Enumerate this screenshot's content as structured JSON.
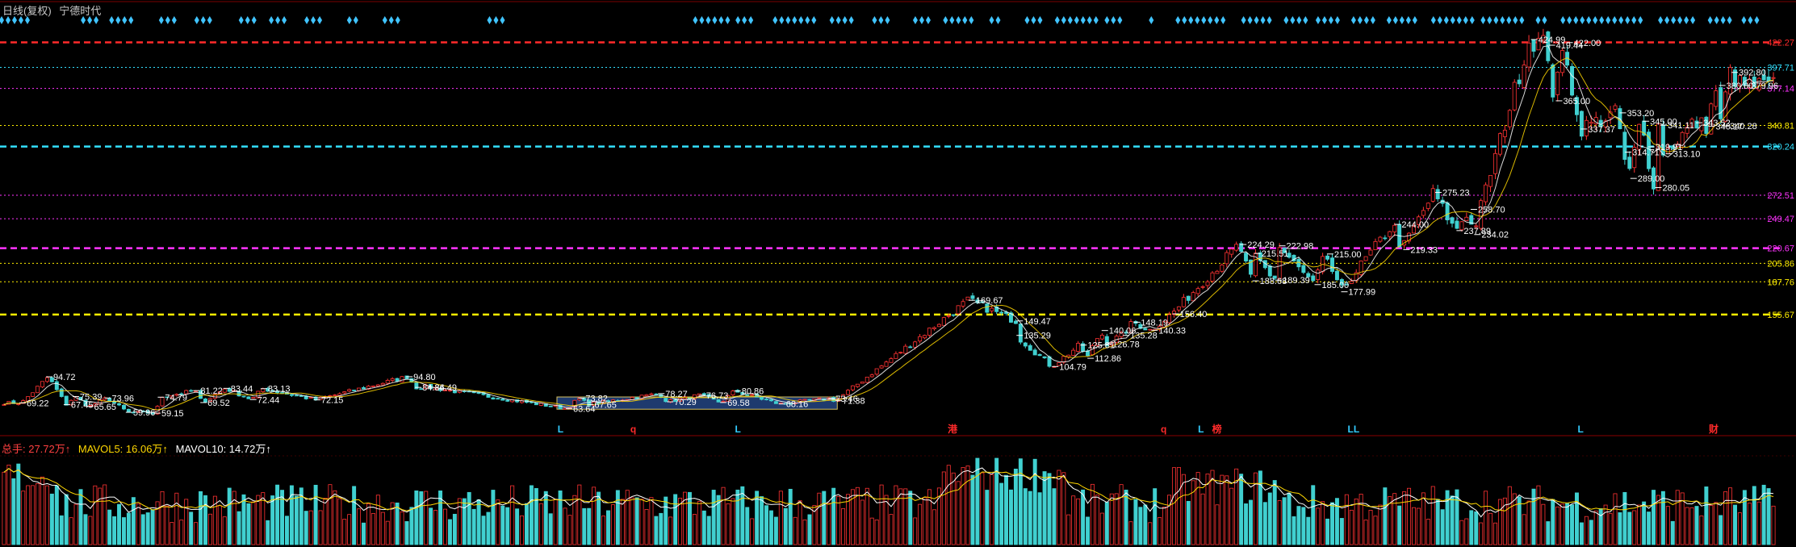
{
  "header": {
    "period_label": "日线(复权)",
    "stock_name": "宁德时代"
  },
  "volume_header": {
    "volume_text": "总手: 27.72万↑",
    "mavol5_text": "MAVOL5: 16.06万↑",
    "mavol10_text": "MAVOL10: 14.72万↑"
  },
  "colors": {
    "background": "#000000",
    "up": "#ff3333",
    "down": "#40d0d0",
    "ma_white": "#ffffff",
    "ma_yellow": "#ffd700",
    "level_red": "#ff2a2a",
    "level_cyan": "#33e0ff",
    "level_magenta": "#ff33ff",
    "level_yellow": "#ffee00",
    "signal_diamond": "#40c4ff",
    "marker_blue": "#33ccff",
    "marker_red": "#ff3333",
    "highlight_box": "#1e3a6e"
  },
  "chart_data": {
    "type": "candlestick",
    "title": "",
    "ylim": [
      45,
      440
    ],
    "price_levels": [
      {
        "value": 422.27,
        "label": "422.27",
        "color": "red",
        "style": "dashed-thick"
      },
      {
        "value": 397.71,
        "label": "397.71",
        "color": "cyan",
        "style": "dotted"
      },
      {
        "value": 377.14,
        "label": "377.14",
        "color": "magenta",
        "style": "dotted"
      },
      {
        "value": 340.81,
        "label": "340.81",
        "color": "yellow",
        "style": "dotted"
      },
      {
        "value": 320.24,
        "label": "320.24",
        "color": "cyan",
        "style": "dashed-thick"
      },
      {
        "value": 272.51,
        "label": "272.51",
        "color": "magenta",
        "style": "dotted"
      },
      {
        "value": 249.47,
        "label": "249.47",
        "color": "magenta",
        "style": "dotted"
      },
      {
        "value": 220.67,
        "label": "220.67",
        "color": "magenta",
        "style": "dashed-thick"
      },
      {
        "value": 205.86,
        "label": "205.86",
        "color": "yellow",
        "style": "dotted"
      },
      {
        "value": 187.76,
        "label": "187.76",
        "color": "yellow",
        "style": "dotted"
      },
      {
        "value": 155.67,
        "label": "155.67",
        "color": "yellow",
        "style": "dashed-thick"
      }
    ],
    "price_annotations": [
      {
        "value": 94.72,
        "label": "94.72",
        "frac": 0.025
      },
      {
        "value": 69.22,
        "label": "69.22",
        "frac": 0.01
      },
      {
        "value": 75.39,
        "label": "75.39",
        "frac": 0.04
      },
      {
        "value": 73.96,
        "label": "73.96",
        "frac": 0.058
      },
      {
        "value": 67.45,
        "label": "67.45",
        "frac": 0.035
      },
      {
        "value": 65.65,
        "label": "65.65",
        "frac": 0.048
      },
      {
        "value": 59.96,
        "label": "59.96",
        "frac": 0.07
      },
      {
        "value": 74.79,
        "label": "74.79",
        "frac": 0.088
      },
      {
        "value": 59.15,
        "label": "59.15",
        "frac": 0.086
      },
      {
        "value": 81.22,
        "label": "81.22",
        "frac": 0.108
      },
      {
        "value": 69.52,
        "label": "69.52",
        "frac": 0.112
      },
      {
        "value": 83.44,
        "label": "83.44",
        "frac": 0.125
      },
      {
        "value": 72.44,
        "label": "72.44",
        "frac": 0.14
      },
      {
        "value": 83.13,
        "label": "83.13",
        "frac": 0.146
      },
      {
        "value": 72.15,
        "label": "72.15",
        "frac": 0.176
      },
      {
        "value": 94.8,
        "label": "94.80",
        "frac": 0.228
      },
      {
        "value": 84.49,
        "label": "84.49",
        "frac": 0.24
      },
      {
        "value": 84.36,
        "label": "84.36",
        "frac": 0.233
      },
      {
        "value": 73.82,
        "label": "73.82",
        "frac": 0.325
      },
      {
        "value": 67.65,
        "label": "67.65",
        "frac": 0.33
      },
      {
        "value": 63.64,
        "label": "63.64",
        "frac": 0.318
      },
      {
        "value": 78.27,
        "label": "78.27",
        "frac": 0.37
      },
      {
        "value": 70.29,
        "label": "70.29",
        "frac": 0.375
      },
      {
        "value": 76.73,
        "label": "76.73",
        "frac": 0.393
      },
      {
        "value": 69.58,
        "label": "69.58",
        "frac": 0.405
      },
      {
        "value": 80.86,
        "label": "80.86",
        "frac": 0.413
      },
      {
        "value": 68.16,
        "label": "68.16",
        "frac": 0.438
      },
      {
        "value": 73.46,
        "label": "73.46",
        "frac": 0.466
      },
      {
        "value": 71.38,
        "label": "71.38",
        "frac": 0.47
      },
      {
        "value": 169.67,
        "label": "169.67",
        "frac": 0.545
      },
      {
        "value": 149.47,
        "label": "149.47",
        "frac": 0.572
      },
      {
        "value": 135.29,
        "label": "135.29",
        "frac": 0.572
      },
      {
        "value": 104.79,
        "label": "104.79",
        "frac": 0.592
      },
      {
        "value": 125.81,
        "label": "125.81",
        "frac": 0.608
      },
      {
        "value": 126.78,
        "label": "126.78",
        "frac": 0.622
      },
      {
        "value": 112.86,
        "label": "112.86",
        "frac": 0.612
      },
      {
        "value": 140.06,
        "label": "140.06",
        "frac": 0.62
      },
      {
        "value": 135.28,
        "label": "135.28",
        "frac": 0.632
      },
      {
        "value": 148.19,
        "label": "148.19",
        "frac": 0.638
      },
      {
        "value": 140.33,
        "label": "140.33",
        "frac": 0.648
      },
      {
        "value": 156.4,
        "label": "156.40",
        "frac": 0.66
      },
      {
        "value": 224.29,
        "label": "224.29",
        "frac": 0.698
      },
      {
        "value": 215.51,
        "label": "215.51",
        "frac": 0.706
      },
      {
        "value": 222.98,
        "label": "222.98",
        "frac": 0.72
      },
      {
        "value": 188.68,
        "label": "188.68",
        "frac": 0.705
      },
      {
        "value": 189.39,
        "label": "189.39",
        "frac": 0.718
      },
      {
        "value": 185.0,
        "label": "185.00",
        "frac": 0.74
      },
      {
        "value": 215.0,
        "label": "215.00",
        "frac": 0.747
      },
      {
        "value": 177.99,
        "label": "177.99",
        "frac": 0.755
      },
      {
        "value": 244.0,
        "label": "244.00",
        "frac": 0.785
      },
      {
        "value": 219.33,
        "label": "219.33",
        "frac": 0.79
      },
      {
        "value": 275.23,
        "label": "275.23",
        "frac": 0.808
      },
      {
        "value": 258.7,
        "label": "258.70",
        "frac": 0.828
      },
      {
        "value": 237.89,
        "label": "237.89",
        "frac": 0.82
      },
      {
        "value": 234.02,
        "label": "234.02",
        "frac": 0.83
      },
      {
        "value": 424.99,
        "label": "424.99",
        "frac": 0.862
      },
      {
        "value": 419.44,
        "label": "419.44",
        "frac": 0.872
      },
      {
        "value": 422.0,
        "label": "422.00",
        "frac": 0.882
      },
      {
        "value": 365.0,
        "label": "365.00",
        "frac": 0.876
      },
      {
        "value": 337.37,
        "label": "337.37",
        "frac": 0.89
      },
      {
        "value": 353.2,
        "label": "353.20",
        "frac": 0.912
      },
      {
        "value": 314.71,
        "label": "314.71",
        "frac": 0.915
      },
      {
        "value": 345.0,
        "label": "345.00",
        "frac": 0.925
      },
      {
        "value": 341.11,
        "label": "341.11",
        "frac": 0.935
      },
      {
        "value": 319.91,
        "label": "319.91",
        "frac": 0.928
      },
      {
        "value": 313.1,
        "label": "313.10",
        "frac": 0.938
      },
      {
        "value": 289.0,
        "label": "289.00",
        "frac": 0.918
      },
      {
        "value": 280.05,
        "label": "280.05",
        "frac": 0.932
      },
      {
        "value": 343.52,
        "label": "343.52",
        "frac": 0.955
      },
      {
        "value": 340.17,
        "label": "340.17",
        "frac": 0.962
      },
      {
        "value": 340.28,
        "label": "340.28",
        "frac": 0.97
      },
      {
        "value": 392.8,
        "label": "392.80",
        "frac": 0.975
      },
      {
        "value": 380.0,
        "label": "380.00",
        "frac": 0.968
      },
      {
        "value": 379.96,
        "label": "379.96",
        "frac": 0.982
      }
    ],
    "bottom_markers": [
      {
        "label": "L",
        "frac": 0.315,
        "color": "blue"
      },
      {
        "label": "q",
        "frac": 0.356,
        "color": "red"
      },
      {
        "label": "L",
        "frac": 0.415,
        "color": "blue"
      },
      {
        "label": "港",
        "frac": 0.536,
        "color": "red"
      },
      {
        "label": "q",
        "frac": 0.655,
        "color": "red"
      },
      {
        "label": "L",
        "frac": 0.676,
        "color": "blue"
      },
      {
        "label": "榜",
        "frac": 0.685,
        "color": "red"
      },
      {
        "label": "LL",
        "frac": 0.762,
        "color": "blue"
      },
      {
        "label": "L",
        "frac": 0.89,
        "color": "blue"
      },
      {
        "label": "财",
        "frac": 0.965,
        "color": "red"
      }
    ],
    "signal_diamond_groups": [
      [
        0.0,
        0.018
      ],
      [
        0.046,
        0.055
      ],
      [
        0.062,
        0.074
      ],
      [
        0.09,
        0.098
      ],
      [
        0.11,
        0.118
      ],
      [
        0.135,
        0.145
      ],
      [
        0.152,
        0.16
      ],
      [
        0.172,
        0.182
      ],
      [
        0.196,
        0.2
      ],
      [
        0.216,
        0.226
      ],
      [
        0.275,
        0.283
      ],
      [
        0.391,
        0.41
      ],
      [
        0.415,
        0.425
      ],
      [
        0.436,
        0.458
      ],
      [
        0.468,
        0.48
      ],
      [
        0.492,
        0.5
      ],
      [
        0.515,
        0.525
      ],
      [
        0.532,
        0.547
      ],
      [
        0.558,
        0.565
      ],
      [
        0.578,
        0.588
      ],
      [
        0.595,
        0.618
      ],
      [
        0.623,
        0.632
      ],
      [
        0.648,
        0.65
      ],
      [
        0.663,
        0.692
      ],
      [
        0.7,
        0.718
      ],
      [
        0.724,
        0.735
      ],
      [
        0.742,
        0.756
      ],
      [
        0.762,
        0.775
      ],
      [
        0.782,
        0.8
      ],
      [
        0.807,
        0.83
      ],
      [
        0.835,
        0.86
      ],
      [
        0.866,
        0.873
      ],
      [
        0.88,
        0.925
      ],
      [
        0.935,
        0.955
      ],
      [
        0.963,
        0.975
      ],
      [
        0.982,
        0.99
      ]
    ],
    "highlight_range": {
      "start_frac": 0.313,
      "end_frac": 0.471,
      "low": 63.0,
      "high": 75.0
    },
    "legend": "none",
    "grid": false
  }
}
